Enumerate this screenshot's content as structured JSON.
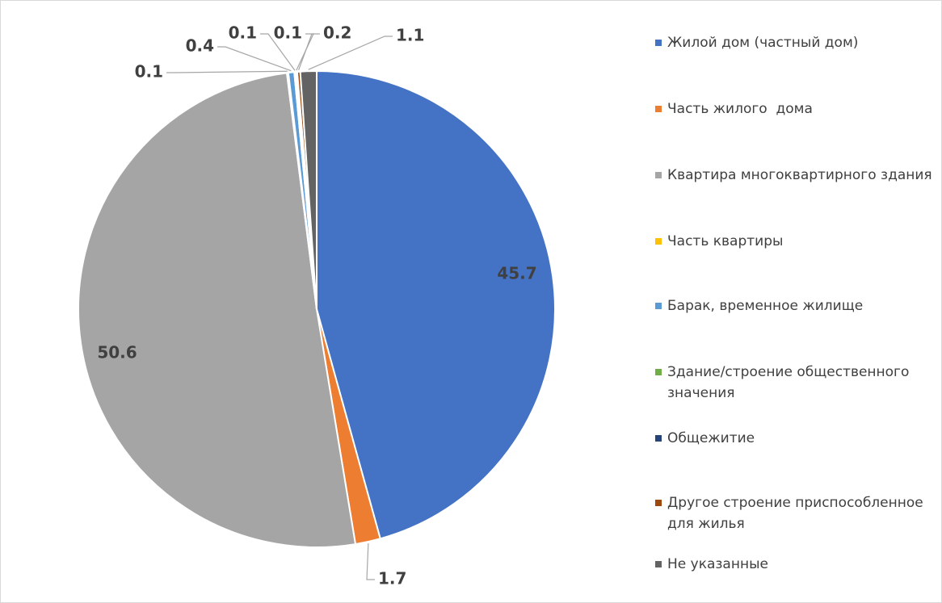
{
  "chart_data": {
    "type": "pie",
    "categories": [
      "Жилой дом (частный дом)",
      "Часть жилого  дома",
      "Квартира многоквартирного здания",
      "Часть квартиры",
      "Барак, временное жилище",
      "Здание/строение общественного значения",
      "Общежитие",
      "Другое строение приспособленное для жилья",
      "Не указанные"
    ],
    "values": [
      45.7,
      1.7,
      50.6,
      0.1,
      0.4,
      0.1,
      0.1,
      0.2,
      1.1
    ],
    "colors": [
      "#4472c4",
      "#ed7d31",
      "#a5a5a5",
      "#ffc000",
      "#5b9bd5",
      "#70ad47",
      "#264478",
      "#9e480e",
      "#636363"
    ],
    "legend": "right"
  }
}
